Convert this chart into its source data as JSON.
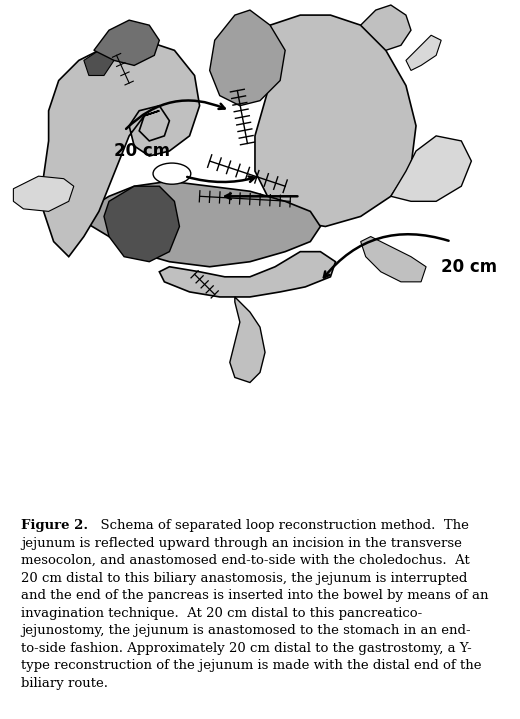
{
  "figure_width": 5.2,
  "figure_height": 7.19,
  "dpi": 100,
  "bg_color": "#ffffff",
  "caption_bold": "Figure 2.",
  "caption_rest": " Schema of separated loop reconstruction method. The jejunum is reflected upward through an incision in the transverse mesocolon, and anastomosed end-to-side with the choledochus. At 20 cm distal to this biliary anastomosis, the jejunum is interrupted and the end of the pancreas is inserted into the bowel by means of an invagination technique. At 20 cm distal to this pancreatico-jejunostomy, the jejunum is anastomosed to the stomach in an end-to-side fashion. Approximately 20 cm distal to the gastrostomy, a Y-type reconstruction of the jejunum is made with the distal end of the biliary route.",
  "label_top": "20 cm",
  "label_bot": "20 cm",
  "c_vlight": "#d8d8d8",
  "c_light": "#c0c0c0",
  "c_mid": "#a0a0a0",
  "c_dark": "#707070",
  "c_darker": "#505050",
  "c_darkest": "#383838",
  "c_white": "#ffffff",
  "c_black": "#000000",
  "cap_fs": 9.5
}
